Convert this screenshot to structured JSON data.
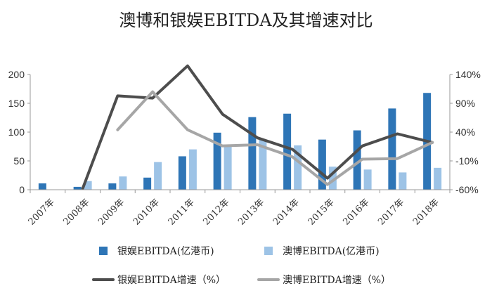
{
  "chart_data": {
    "type": "bar",
    "title": "澳博和银娱EBITDA及其增速对比",
    "categories": [
      "2007年",
      "2008年",
      "2009年",
      "2010年",
      "2011年",
      "2012年",
      "2013年",
      "2014年",
      "2015年",
      "2016年",
      "2017年",
      "2018年"
    ],
    "y_left": {
      "ylim": [
        0,
        200
      ],
      "ticks": [
        0,
        50,
        100,
        150,
        200
      ],
      "tick_labels": [
        "0",
        "50",
        "100",
        "150",
        "200"
      ]
    },
    "y_right": {
      "ylim": [
        -60,
        140
      ],
      "ticks": [
        -60,
        -10,
        40,
        90,
        140
      ],
      "tick_labels": [
        "-60%",
        "-10%",
        "40%",
        "90%",
        "140%"
      ]
    },
    "series": [
      {
        "name": "银娱EBITDA(亿港币)",
        "kind": "bar",
        "axis": "left",
        "color": "#2E75B6",
        "values": [
          11,
          5,
          11,
          21,
          58,
          99,
          126,
          132,
          87,
          103,
          141,
          168
        ]
      },
      {
        "name": "澳博EBITDA(亿港币)",
        "kind": "bar",
        "axis": "left",
        "color": "#9DC3E6",
        "values": [
          null,
          15,
          23,
          48,
          70,
          77,
          87,
          77,
          40,
          35,
          30,
          38
        ]
      },
      {
        "name": "银娱EBITDA增速（%）",
        "kind": "line",
        "axis": "right",
        "color": "#4D4D4D",
        "values": [
          null,
          -58,
          103,
          99,
          155,
          71,
          30,
          10,
          -40,
          16,
          37,
          22
        ]
      },
      {
        "name": "澳博EBITDA增速（%）",
        "kind": "line",
        "axis": "right",
        "color": "#A6A6A6",
        "values": [
          null,
          null,
          44,
          110,
          44,
          16,
          18,
          -3,
          -51,
          -7,
          -6,
          22
        ]
      }
    ]
  }
}
